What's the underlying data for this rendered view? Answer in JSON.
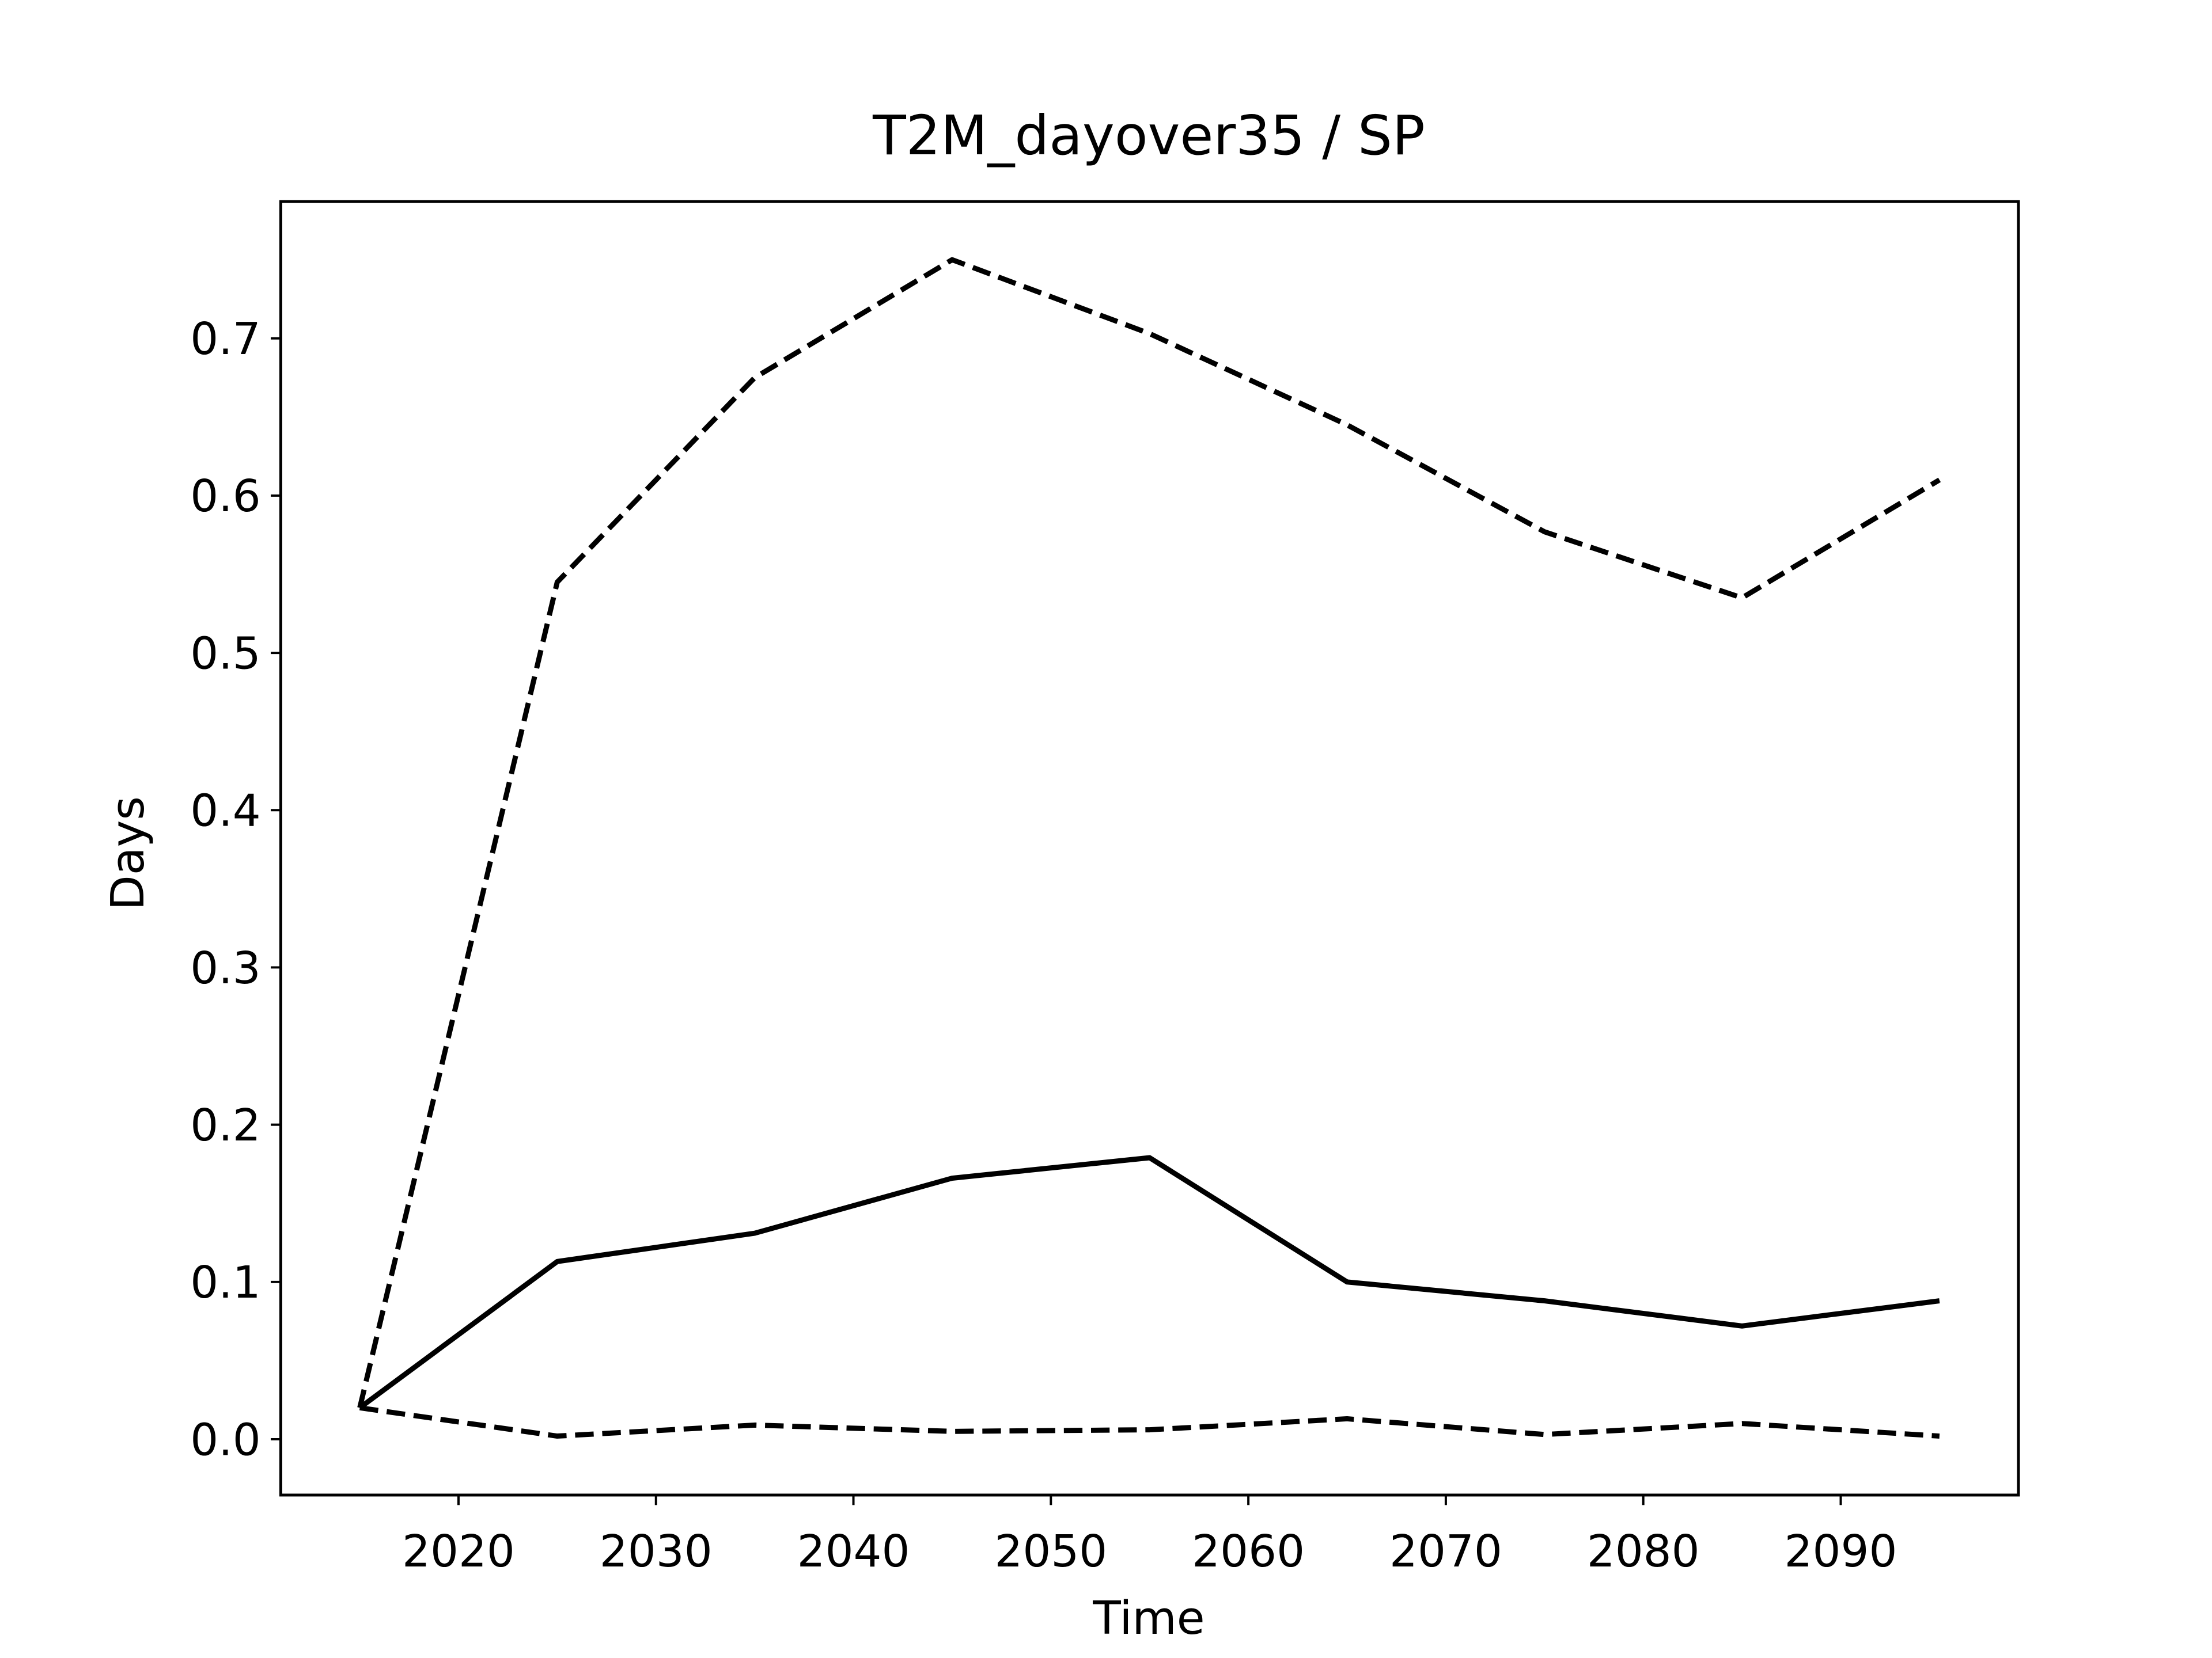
{
  "chart_data": {
    "type": "line",
    "title": "T2M_dayover35 / SP",
    "xlabel": "Time",
    "ylabel": "Days",
    "x": [
      2015,
      2025,
      2035,
      2045,
      2055,
      2065,
      2075,
      2085,
      2095
    ],
    "series": [
      {
        "color": "#000000",
        "linestyle": "solid",
        "values": [
          0.02,
          0.113,
          0.131,
          0.166,
          0.179,
          0.1,
          0.088,
          0.072,
          0.088
        ]
      },
      {
        "color": "#000000",
        "linestyle": "dashed",
        "values": [
          0.02,
          0.545,
          0.675,
          0.75,
          0.703,
          0.645,
          0.577,
          0.535,
          0.61
        ]
      },
      {
        "color": "#000000",
        "linestyle": "dashed",
        "values": [
          0.02,
          0.002,
          0.009,
          0.005,
          0.006,
          0.013,
          0.003,
          0.01,
          0.002
        ]
      }
    ],
    "xlim": [
      2011,
      2099
    ],
    "ylim": [
      -0.0355,
      0.787
    ],
    "xticks": [
      2020,
      2030,
      2040,
      2050,
      2060,
      2070,
      2080,
      2090
    ],
    "yticks": [
      {
        "value": 0,
        "label": "0.0"
      },
      0.1,
      0.2,
      0.3,
      0.4,
      0.5,
      0.6,
      0.7
    ],
    "grid": false
  }
}
